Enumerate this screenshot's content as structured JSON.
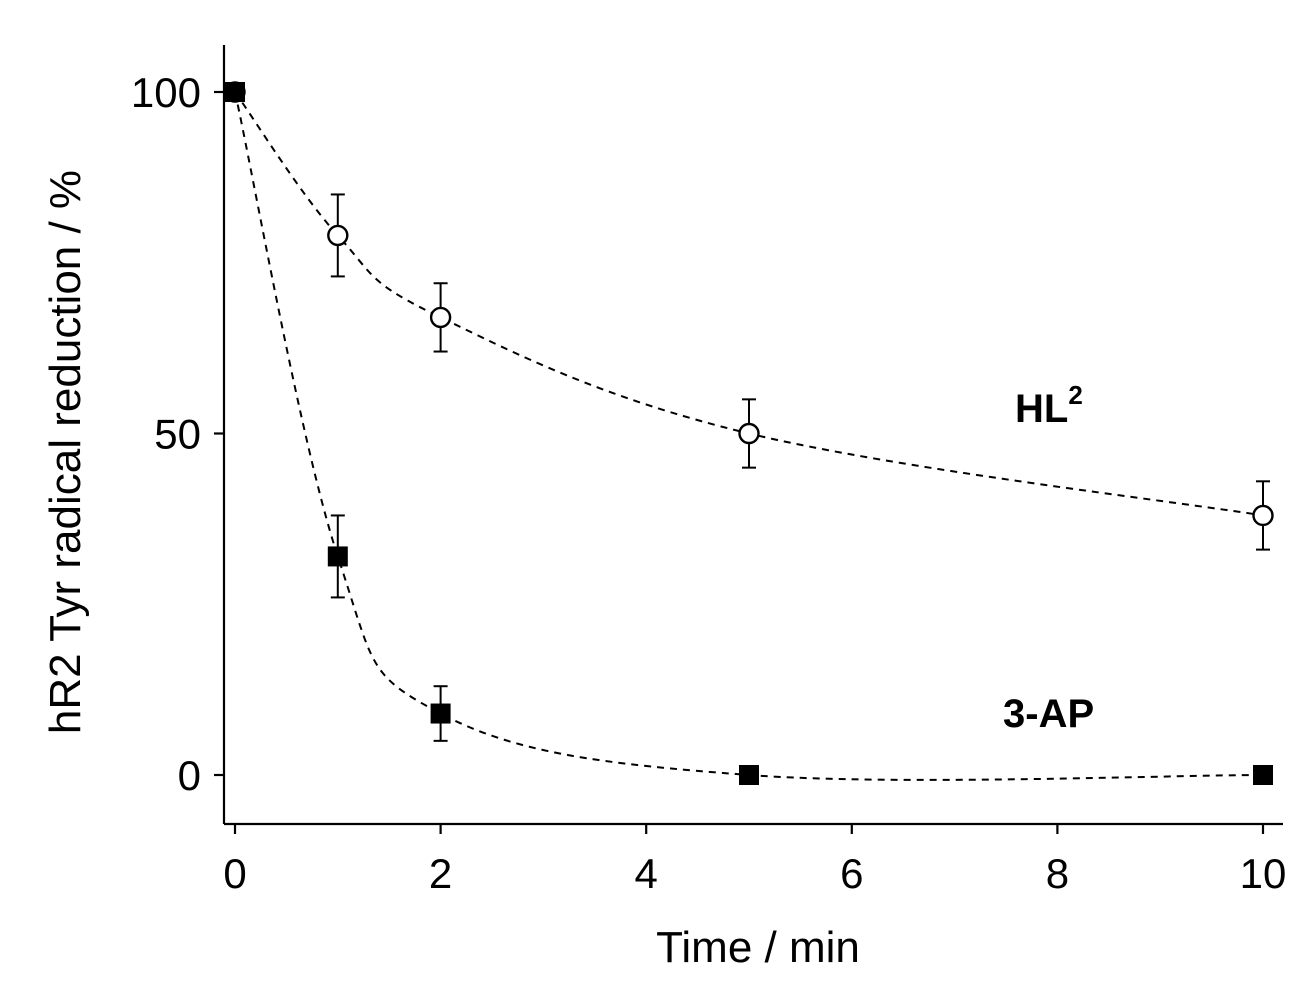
{
  "chart_data": {
    "type": "scatter",
    "xlabel": "Time / min",
    "ylabel": "hR2 Tyr radical reduction / %",
    "xlim": [
      0,
      10.2
    ],
    "ylim": [
      -7,
      107
    ],
    "xticks": [
      0,
      2,
      4,
      6,
      8,
      10
    ],
    "yticks": [
      0,
      50,
      100
    ],
    "grid": false,
    "series": [
      {
        "name": "HL",
        "name_sup": "2",
        "marker": "open-circle",
        "line_style": "dashed",
        "points": [
          {
            "x": 0,
            "y": 100,
            "err": 0
          },
          {
            "x": 1,
            "y": 79,
            "err": 6
          },
          {
            "x": 2,
            "y": 67,
            "err": 5
          },
          {
            "x": 5,
            "y": 50,
            "err": 5
          },
          {
            "x": 10,
            "y": 38,
            "err": 5
          }
        ]
      },
      {
        "name": "3-AP",
        "marker": "filled-square",
        "line_style": "dashed",
        "points": [
          {
            "x": 0,
            "y": 100,
            "err": 0
          },
          {
            "x": 1,
            "y": 32,
            "err": 6
          },
          {
            "x": 2,
            "y": 9,
            "err": 4
          },
          {
            "x": 5,
            "y": 0,
            "err": 0
          },
          {
            "x": 10,
            "y": 0,
            "err": 0
          }
        ]
      }
    ]
  }
}
